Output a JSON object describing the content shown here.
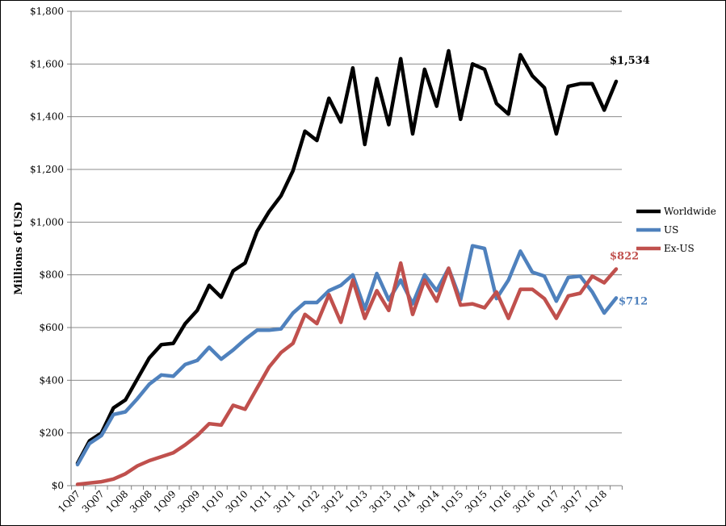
{
  "chart_data": {
    "type": "line",
    "title": "",
    "xlabel": "",
    "ylabel": "Millions of USD",
    "ylim": [
      0,
      1800
    ],
    "y_ticks": [
      "$0",
      "$200",
      "$400",
      "$600",
      "$800",
      "$1,000",
      "$1,200",
      "$1,400",
      "$1,600",
      "$1,800"
    ],
    "grid": "horizontal",
    "legend_position": "right",
    "x": [
      "1Q07",
      "2Q07",
      "3Q07",
      "4Q07",
      "1Q08",
      "2Q08",
      "3Q08",
      "4Q08",
      "1Q09",
      "2Q09",
      "3Q09",
      "4Q09",
      "1Q10",
      "2Q10",
      "3Q10",
      "4Q10",
      "1Q11",
      "2Q11",
      "3Q11",
      "4Q11",
      "1Q12",
      "2Q12",
      "3Q12",
      "4Q12",
      "1Q13",
      "2Q13",
      "3Q13",
      "4Q13",
      "1Q14",
      "2Q14",
      "3Q14",
      "4Q14",
      "1Q15",
      "2Q15",
      "3Q15",
      "4Q15",
      "1Q16",
      "2Q16",
      "3Q16",
      "4Q16",
      "1Q17",
      "2Q17",
      "3Q17",
      "4Q17",
      "1Q18",
      "2Q18"
    ],
    "x_tick_labels": [
      "1Q07",
      "3Q07",
      "1Q08",
      "3Q08",
      "1Q09",
      "3Q09",
      "1Q10",
      "3Q10",
      "1Q11",
      "3Q11",
      "1Q12",
      "3Q12",
      "1Q13",
      "3Q13",
      "1Q14",
      "3Q14",
      "1Q15",
      "3Q15",
      "1Q16",
      "3Q16",
      "1Q17",
      "3Q17",
      "1Q18"
    ],
    "series": [
      {
        "name": "Worldwide",
        "color": "#000000",
        "values": [
          85,
          170,
          200,
          295,
          325,
          405,
          485,
          535,
          540,
          615,
          665,
          760,
          715,
          815,
          845,
          965,
          1040,
          1100,
          1195,
          1345,
          1310,
          1470,
          1380,
          1585,
          1295,
          1545,
          1370,
          1620,
          1335,
          1580,
          1440,
          1650,
          1390,
          1600,
          1580,
          1450,
          1410,
          1635,
          1555,
          1510,
          1335,
          1515,
          1525,
          1525,
          1425,
          1534
        ]
      },
      {
        "name": "US",
        "color": "#4f81bd",
        "values": [
          80,
          160,
          190,
          270,
          280,
          330,
          385,
          420,
          415,
          460,
          475,
          525,
          480,
          515,
          555,
          590,
          590,
          595,
          655,
          695,
          695,
          740,
          760,
          800,
          670,
          805,
          705,
          780,
          690,
          800,
          740,
          825,
          705,
          910,
          900,
          710,
          780,
          890,
          810,
          795,
          700,
          790,
          795,
          735,
          655,
          712
        ]
      },
      {
        "name": "Ex-US",
        "color": "#c0504d",
        "values": [
          5,
          10,
          15,
          25,
          45,
          75,
          95,
          110,
          125,
          155,
          190,
          235,
          230,
          305,
          290,
          370,
          450,
          505,
          540,
          650,
          615,
          725,
          620,
          780,
          635,
          740,
          665,
          845,
          650,
          780,
          700,
          825,
          685,
          690,
          675,
          735,
          635,
          745,
          745,
          710,
          635,
          720,
          730,
          795,
          770,
          822
        ]
      }
    ],
    "end_labels": [
      {
        "series": "Worldwide",
        "text": "$1,534"
      },
      {
        "series": "Ex-US",
        "text": "$822"
      },
      {
        "series": "US",
        "text": "$712"
      }
    ]
  }
}
